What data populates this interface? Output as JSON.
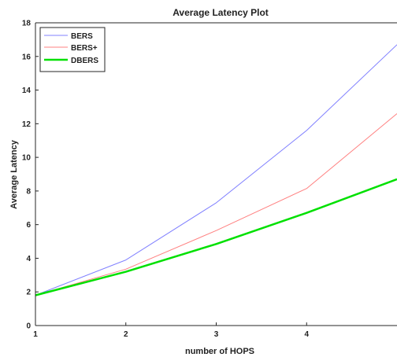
{
  "chart_data": {
    "type": "line",
    "title": "Average Latency Plot",
    "xlabel": "number of HOPS",
    "ylabel": "Average Latency",
    "x": [
      1,
      2,
      3,
      4,
      5
    ],
    "xlim": [
      1,
      5
    ],
    "ylim": [
      0,
      18
    ],
    "xticks": [
      "1",
      "2",
      "3",
      "4"
    ],
    "yticks": [
      "0",
      "2",
      "4",
      "6",
      "8",
      "10",
      "12",
      "14",
      "16",
      "18"
    ],
    "grid": false,
    "legend_position": "top-left",
    "series": [
      {
        "name": "BERS",
        "color": "#8080ff",
        "values": [
          1.8,
          3.9,
          7.3,
          11.6,
          16.7
        ]
      },
      {
        "name": "BERS+",
        "color": "#ff8080",
        "values": [
          1.8,
          3.35,
          5.65,
          8.15,
          12.6
        ]
      },
      {
        "name": "DBERS",
        "color": "#00e000",
        "values": [
          1.8,
          3.2,
          4.85,
          6.7,
          8.7
        ]
      }
    ]
  }
}
